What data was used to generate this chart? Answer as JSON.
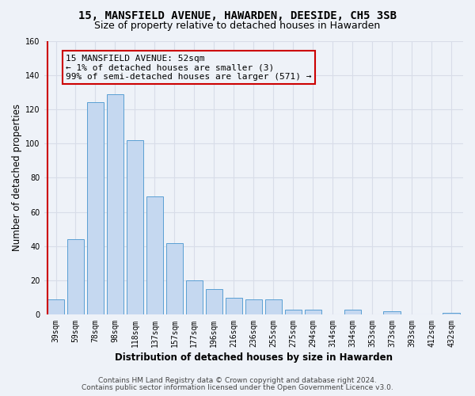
{
  "title": "15, MANSFIELD AVENUE, HAWARDEN, DEESIDE, CH5 3SB",
  "subtitle": "Size of property relative to detached houses in Hawarden",
  "xlabel": "Distribution of detached houses by size in Hawarden",
  "ylabel": "Number of detached properties",
  "categories": [
    "39sqm",
    "59sqm",
    "78sqm",
    "98sqm",
    "118sqm",
    "137sqm",
    "157sqm",
    "177sqm",
    "196sqm",
    "216sqm",
    "236sqm",
    "255sqm",
    "275sqm",
    "294sqm",
    "314sqm",
    "334sqm",
    "353sqm",
    "373sqm",
    "393sqm",
    "412sqm",
    "432sqm"
  ],
  "values": [
    9,
    44,
    124,
    129,
    102,
    69,
    42,
    20,
    15,
    10,
    9,
    9,
    3,
    3,
    0,
    3,
    0,
    2,
    0,
    0,
    1
  ],
  "bar_color": "#c5d8f0",
  "bar_edge_color": "#5a9fd4",
  "red_line_color": "#cc0000",
  "annotation_title": "15 MANSFIELD AVENUE: 52sqm",
  "annotation_line1": "← 1% of detached houses are smaller (3)",
  "annotation_line2": "99% of semi-detached houses are larger (571) →",
  "annotation_box_edge_color": "#cc0000",
  "ylim": [
    0,
    160
  ],
  "yticks": [
    0,
    20,
    40,
    60,
    80,
    100,
    120,
    140,
    160
  ],
  "footer_line1": "Contains HM Land Registry data © Crown copyright and database right 2024.",
  "footer_line2": "Contains public sector information licensed under the Open Government Licence v3.0.",
  "background_color": "#eef2f8",
  "grid_color": "#d8dde8",
  "title_fontsize": 10,
  "subtitle_fontsize": 9,
  "axis_label_fontsize": 8.5,
  "tick_fontsize": 7,
  "footer_fontsize": 6.5,
  "annotation_fontsize": 8
}
